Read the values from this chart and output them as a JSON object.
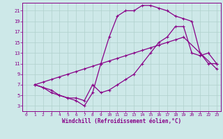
{
  "xlabel": "Windchill (Refroidissement éolien,°C)",
  "bg_color": "#cde8e8",
  "grid_color": "#b0d0cc",
  "line_color": "#880088",
  "xlim": [
    -0.5,
    23.5
  ],
  "ylim": [
    2,
    22.5
  ],
  "xticks": [
    0,
    1,
    2,
    3,
    4,
    5,
    6,
    7,
    8,
    9,
    10,
    11,
    12,
    13,
    14,
    15,
    16,
    17,
    18,
    19,
    20,
    21,
    22,
    23
  ],
  "yticks": [
    3,
    5,
    7,
    9,
    11,
    13,
    15,
    17,
    19,
    21
  ],
  "line1_x": [
    1,
    2,
    3,
    4,
    5,
    6,
    7,
    8,
    9,
    10,
    11,
    12,
    13,
    14,
    15,
    16,
    17,
    18,
    19,
    20,
    21,
    22,
    23
  ],
  "line1_y": [
    7,
    6.5,
    6,
    5,
    4.5,
    4,
    3,
    5.5,
    11,
    16,
    20,
    21,
    21,
    22,
    22,
    21.5,
    21,
    20,
    19.5,
    19,
    13,
    11,
    11
  ],
  "line2_x": [
    1,
    2,
    3,
    4,
    5,
    6,
    7,
    8,
    9,
    10,
    11,
    12,
    13,
    14,
    15,
    16,
    17,
    18,
    19,
    23
  ],
  "line2_y": [
    7,
    7.5,
    8,
    8.5,
    9,
    9.5,
    10,
    10.5,
    11,
    11.5,
    12,
    12.5,
    13,
    13.5,
    14,
    14.5,
    15,
    15.5,
    16,
    10
  ],
  "line3_x": [
    1,
    2,
    3,
    4,
    5,
    6,
    7,
    8,
    9,
    10,
    11,
    12,
    13,
    14,
    15,
    16,
    17,
    18,
    19,
    20,
    21,
    22,
    23
  ],
  "line3_y": [
    7,
    6.5,
    5.5,
    5,
    4.5,
    4.5,
    4,
    7,
    5.5,
    6,
    7,
    8,
    9,
    11,
    13,
    15,
    16,
    18,
    18,
    13,
    12.5,
    13,
    11
  ]
}
